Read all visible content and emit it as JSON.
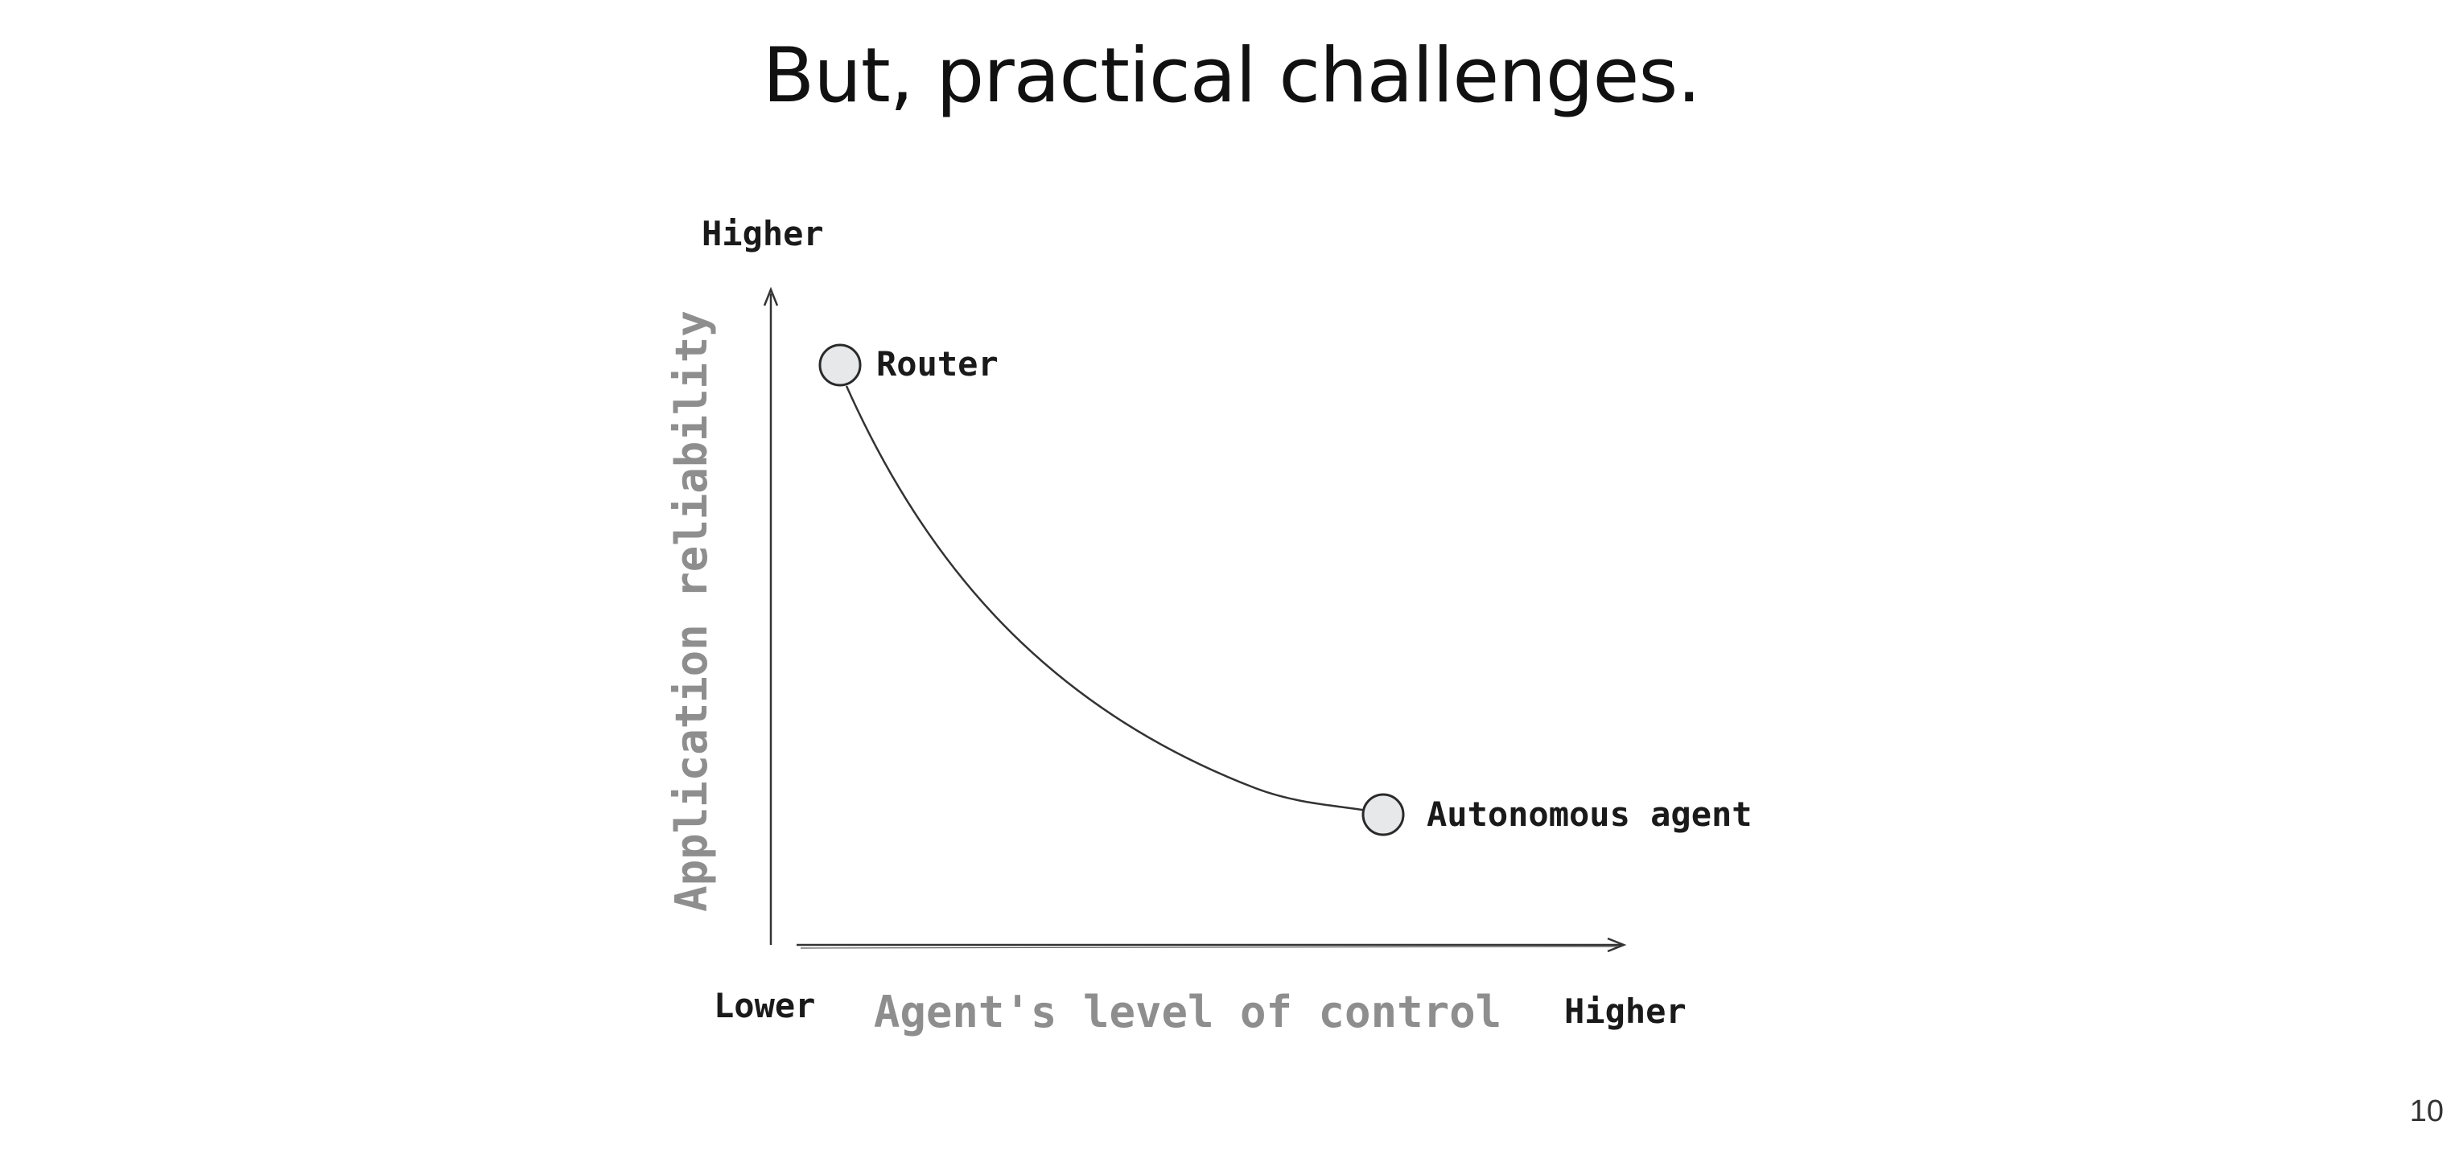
{
  "slide": {
    "title": "But, practical challenges.",
    "page_number": "10"
  },
  "diagram": {
    "y_axis": {
      "label": "Application reliability",
      "top_label": "Higher"
    },
    "x_axis": {
      "label": "Agent's level of control",
      "left_label": "Lower",
      "right_label": "Higher"
    },
    "nodes": [
      {
        "id": "router",
        "label": "Router"
      },
      {
        "id": "autonomous-agent",
        "label": "Autonomous agent"
      }
    ],
    "colors": {
      "axis_label": "#8e8e8e",
      "text": "#1a1a1a",
      "line": "#333333",
      "node_fill": "#e6e8ea",
      "node_stroke": "#2a2a2a"
    }
  }
}
